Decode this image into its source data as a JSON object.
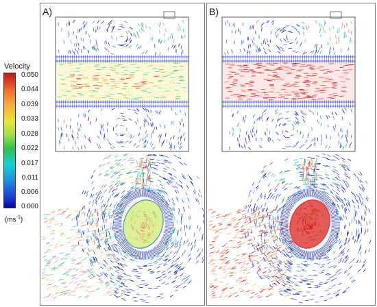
{
  "panels": [
    {
      "id": "A",
      "label": "A)",
      "mode": "mixed"
    },
    {
      "id": "B",
      "label": "B)",
      "mode": "red"
    }
  ],
  "legend": {
    "title": "Velocity",
    "ticks": [
      "0.050",
      "0.044",
      "0.039",
      "0.033",
      "0.028",
      "0.022",
      "0.017",
      "0.011",
      "0.006",
      "0.000"
    ],
    "unit_base": "(ms",
    "unit_exp": "-1",
    "unit_close": ")",
    "colors": [
      "#d7191c",
      "#f46d43",
      "#fdae61",
      "#fee08b",
      "#d9ef8b",
      "#66bd63",
      "#1ad0d9",
      "#2b83ba",
      "#1f3fd6",
      "#0000a0"
    ]
  }
}
